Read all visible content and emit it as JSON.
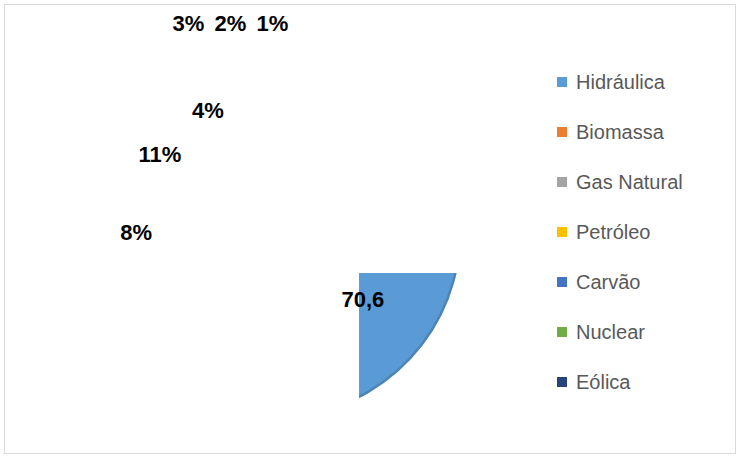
{
  "chart_data": {
    "type": "pie",
    "categories": [
      "Hidráulica",
      "Biomassa",
      "Gas Natural",
      "Petróleo",
      "Carvão",
      "Nuclear",
      "Eólica"
    ],
    "values": [
      70.6,
      8,
      11,
      4,
      3,
      2,
      1
    ],
    "value_labels": [
      "70,6",
      "8%",
      "11%",
      "4%",
      "3%",
      "2%",
      "1%"
    ],
    "colors": [
      "#5b9bd5",
      "#ed7d31",
      "#a5a5a5",
      "#ffc000",
      "#4472c4",
      "#70ad47",
      "#264478"
    ],
    "data_labels": true,
    "legend": "right"
  }
}
